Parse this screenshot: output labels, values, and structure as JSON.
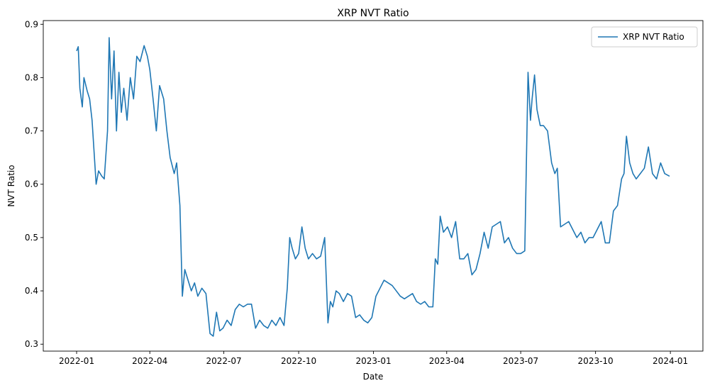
{
  "chart_data": {
    "type": "line",
    "title": "XRP NVT Ratio",
    "xlabel": "Date",
    "ylabel": "NVT Ratio",
    "x_ticks": [
      "2022-01",
      "2022-04",
      "2022-07",
      "2022-10",
      "2023-01",
      "2023-04",
      "2023-07",
      "2023-10",
      "2024-01"
    ],
    "y_ticks": [
      "0.3",
      "0.4",
      "0.5",
      "0.6",
      "0.7",
      "0.8",
      "0.9"
    ],
    "xlim": [
      "2021-11-21",
      "2024-02-10"
    ],
    "ylim": [
      0.287,
      0.907
    ],
    "legend_position": "top-right",
    "grid": false,
    "color": "#1f77b4",
    "series": [
      {
        "name": "XRP NVT Ratio",
        "x": [
          "2022-01-01",
          "2022-01-03",
          "2022-01-05",
          "2022-01-08",
          "2022-01-10",
          "2022-01-14",
          "2022-01-17",
          "2022-01-20",
          "2022-01-25",
          "2022-01-28",
          "2022-02-01",
          "2022-02-04",
          "2022-02-08",
          "2022-02-10",
          "2022-02-13",
          "2022-02-16",
          "2022-02-19",
          "2022-02-22",
          "2022-02-25",
          "2022-02-28",
          "2022-03-04",
          "2022-03-08",
          "2022-03-12",
          "2022-03-16",
          "2022-03-20",
          "2022-03-25",
          "2022-03-29",
          "2022-04-01",
          "2022-04-05",
          "2022-04-09",
          "2022-04-13",
          "2022-04-18",
          "2022-04-22",
          "2022-04-26",
          "2022-05-01",
          "2022-05-04",
          "2022-05-08",
          "2022-05-11",
          "2022-05-14",
          "2022-05-18",
          "2022-05-22",
          "2022-05-26",
          "2022-05-30",
          "2022-06-04",
          "2022-06-09",
          "2022-06-14",
          "2022-06-18",
          "2022-06-22",
          "2022-06-26",
          "2022-06-30",
          "2022-07-05",
          "2022-07-10",
          "2022-07-15",
          "2022-07-20",
          "2022-07-25",
          "2022-07-30",
          "2022-08-04",
          "2022-08-09",
          "2022-08-14",
          "2022-08-19",
          "2022-08-24",
          "2022-08-29",
          "2022-09-03",
          "2022-09-08",
          "2022-09-13",
          "2022-09-17",
          "2022-09-20",
          "2022-09-23",
          "2022-09-27",
          "2022-10-01",
          "2022-10-05",
          "2022-10-09",
          "2022-10-13",
          "2022-10-18",
          "2022-10-23",
          "2022-10-28",
          "2022-11-02",
          "2022-11-06",
          "2022-11-09",
          "2022-11-12",
          "2022-11-16",
          "2022-11-20",
          "2022-11-25",
          "2022-11-30",
          "2022-12-05",
          "2022-12-10",
          "2022-12-15",
          "2022-12-20",
          "2022-12-25",
          "2022-12-30",
          "2023-01-04",
          "2023-01-09",
          "2023-01-14",
          "2023-01-19",
          "2023-01-24",
          "2023-01-29",
          "2023-02-03",
          "2023-02-08",
          "2023-02-13",
          "2023-02-18",
          "2023-02-23",
          "2023-02-28",
          "2023-03-05",
          "2023-03-10",
          "2023-03-15",
          "2023-03-18",
          "2023-03-21",
          "2023-03-24",
          "2023-03-28",
          "2023-04-02",
          "2023-04-07",
          "2023-04-12",
          "2023-04-17",
          "2023-04-22",
          "2023-04-27",
          "2023-05-02",
          "2023-05-07",
          "2023-05-12",
          "2023-05-17",
          "2023-05-22",
          "2023-05-27",
          "2023-06-01",
          "2023-06-06",
          "2023-06-11",
          "2023-06-16",
          "2023-06-21",
          "2023-06-26",
          "2023-07-01",
          "2023-07-06",
          "2023-07-10",
          "2023-07-13",
          "2023-07-15",
          "2023-07-18",
          "2023-07-21",
          "2023-07-25",
          "2023-07-29",
          "2023-08-03",
          "2023-08-08",
          "2023-08-12",
          "2023-08-15",
          "2023-08-19",
          "2023-08-24",
          "2023-08-29",
          "2023-09-03",
          "2023-09-08",
          "2023-09-13",
          "2023-09-18",
          "2023-09-23",
          "2023-09-28",
          "2023-10-03",
          "2023-10-08",
          "2023-10-13",
          "2023-10-18",
          "2023-10-23",
          "2023-10-28",
          "2023-11-02",
          "2023-11-05",
          "2023-11-08",
          "2023-11-12",
          "2023-11-16",
          "2023-11-20",
          "2023-11-25",
          "2023-11-30",
          "2023-12-05",
          "2023-12-10",
          "2023-12-15",
          "2023-12-20",
          "2023-12-25",
          "2023-12-31"
        ],
        "y": [
          0.85,
          0.858,
          0.78,
          0.745,
          0.8,
          0.775,
          0.76,
          0.72,
          0.6,
          0.625,
          0.615,
          0.61,
          0.7,
          0.875,
          0.76,
          0.85,
          0.7,
          0.81,
          0.735,
          0.78,
          0.72,
          0.8,
          0.76,
          0.84,
          0.83,
          0.86,
          0.84,
          0.815,
          0.76,
          0.7,
          0.785,
          0.76,
          0.7,
          0.65,
          0.62,
          0.64,
          0.56,
          0.39,
          0.44,
          0.42,
          0.4,
          0.415,
          0.39,
          0.405,
          0.395,
          0.32,
          0.315,
          0.36,
          0.325,
          0.33,
          0.345,
          0.335,
          0.365,
          0.375,
          0.37,
          0.375,
          0.375,
          0.33,
          0.345,
          0.335,
          0.33,
          0.345,
          0.335,
          0.35,
          0.335,
          0.405,
          0.5,
          0.48,
          0.46,
          0.47,
          0.52,
          0.48,
          0.46,
          0.47,
          0.46,
          0.465,
          0.5,
          0.34,
          0.38,
          0.37,
          0.4,
          0.395,
          0.38,
          0.395,
          0.39,
          0.35,
          0.355,
          0.345,
          0.34,
          0.35,
          0.39,
          0.405,
          0.42,
          0.415,
          0.41,
          0.4,
          0.39,
          0.385,
          0.39,
          0.395,
          0.38,
          0.375,
          0.38,
          0.37,
          0.37,
          0.46,
          0.45,
          0.54,
          0.51,
          0.52,
          0.5,
          0.53,
          0.46,
          0.46,
          0.47,
          0.43,
          0.44,
          0.47,
          0.51,
          0.48,
          0.52,
          0.525,
          0.53,
          0.49,
          0.5,
          0.48,
          0.47,
          0.47,
          0.475,
          0.81,
          0.72,
          0.76,
          0.805,
          0.74,
          0.71,
          0.71,
          0.7,
          0.64,
          0.62,
          0.63,
          0.52,
          0.525,
          0.53,
          0.515,
          0.5,
          0.51,
          0.49,
          0.5,
          0.5,
          0.515,
          0.53,
          0.49,
          0.49,
          0.55,
          0.56,
          0.61,
          0.62,
          0.69,
          0.64,
          0.62,
          0.61,
          0.62,
          0.63,
          0.67,
          0.62,
          0.61,
          0.64,
          0.62,
          0.615
        ]
      }
    ]
  }
}
